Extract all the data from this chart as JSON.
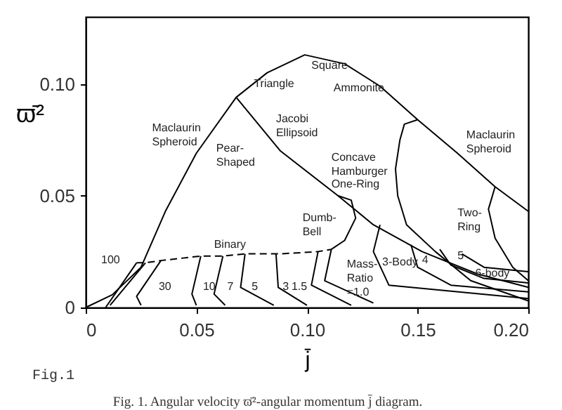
{
  "chart_data": {
    "type": "line",
    "xlabel": "j̄",
    "ylabel": "ϖ̄²",
    "xlim": [
      0,
      0.2
    ],
    "ylim": [
      0,
      0.13
    ],
    "xticks": [
      {
        "value": 0,
        "label": "0"
      },
      0.05,
      {
        "value": 0.1,
        "label": "0.10"
      },
      0.15,
      {
        "value": 0.2,
        "label": "0.20"
      }
    ],
    "yticks": [
      {
        "value": 0,
        "label": "0"
      },
      0.05,
      {
        "value": 0.1,
        "label": "0.10"
      }
    ],
    "grid": false,
    "marker": "none",
    "series": [
      {
        "color": "#000000",
        "line_style": "solid",
        "x": [
          0,
          0.012,
          0.025,
          0.036,
          0.05,
          0.068,
          0.082,
          0.099,
          0.117,
          0.133,
          0.15,
          0.168,
          0.185,
          0.2
        ],
        "values": [
          0,
          0.0057,
          0.018,
          0.043,
          0.069,
          0.094,
          0.105,
          0.113,
          0.109,
          0.099,
          0.084,
          0.069,
          0.054,
          0.043
        ]
      },
      {
        "color": "#000000",
        "line_style": "solid",
        "x": [
          0.068,
          0.088,
          0.114,
          0.13,
          0.152,
          0.177,
          0.2
        ],
        "values": [
          0.094,
          0.07,
          0.05,
          0.037,
          0.025,
          0.015,
          0.009
        ]
      },
      {
        "color": "#000000",
        "line_style": "dashed",
        "x": [
          0.023,
          0.027,
          0.034,
          0.052,
          0.062,
          0.072,
          0.088,
          0.105,
          0.111
        ],
        "values": [
          0.02,
          0.02,
          0.021,
          0.023,
          0.023,
          0.024,
          0.024,
          0.025,
          0.026
        ]
      },
      {
        "color": "#000000",
        "line_style": "solid",
        "x": [
          0.009,
          0.023
        ],
        "values": [
          0,
          0.02
        ]
      },
      {
        "color": "#000000",
        "line_style": "solid",
        "x": [
          0.011,
          0.027
        ],
        "values": [
          0.001,
          0.02
        ]
      },
      {
        "color": "#000000",
        "line_style": "solid",
        "x": [
          0.025,
          0.023,
          0.034
        ],
        "values": [
          0.001,
          0.005,
          0.021
        ]
      },
      {
        "color": "#000000",
        "line_style": "solid",
        "x": [
          0.052,
          0.048,
          0.05
        ],
        "values": [
          0.023,
          0.006,
          0.001
        ]
      },
      {
        "color": "#000000",
        "line_style": "solid",
        "x": [
          0.062,
          0.058,
          0.063
        ],
        "values": [
          0.023,
          0.006,
          0.001
        ]
      },
      {
        "color": "#000000",
        "line_style": "solid",
        "x": [
          0.072,
          0.07,
          0.085
        ],
        "values": [
          0.024,
          0.009,
          0.001
        ]
      },
      {
        "color": "#000000",
        "line_style": "solid",
        "x": [
          0.086,
          0.087,
          0.1
        ],
        "values": [
          0.024,
          0.009,
          0.001
        ]
      },
      {
        "color": "#000000",
        "line_style": "solid",
        "x": [
          0.105,
          0.102,
          0.12
        ],
        "values": [
          0.025,
          0.01,
          0.001
        ]
      },
      {
        "color": "#000000",
        "line_style": "solid",
        "x": [
          0.111,
          0.108,
          0.13
        ],
        "values": [
          0.026,
          0.012,
          0.002
        ]
      },
      {
        "color": "#000000",
        "line_style": "solid",
        "x": [
          0.111,
          0.117,
          0.122,
          0.12,
          0.114
        ],
        "values": [
          0.026,
          0.03,
          0.04,
          0.048,
          0.05
        ]
      },
      {
        "color": "#000000",
        "line_style": "solid",
        "x": [
          0.15,
          0.144,
          0.142,
          0.14,
          0.141,
          0.145,
          0.158,
          0.174,
          0.2
        ],
        "values": [
          0.084,
          0.082,
          0.075,
          0.062,
          0.05,
          0.037,
          0.025,
          0.012,
          0.003
        ]
      },
      {
        "color": "#000000",
        "line_style": "solid",
        "x": [
          0.185,
          0.182,
          0.185,
          0.193,
          0.2
        ],
        "values": [
          0.054,
          0.044,
          0.031,
          0.018,
          0.012
        ]
      },
      {
        "color": "#000000",
        "line_style": "solid",
        "x": [
          0.133,
          0.13,
          0.137,
          0.2
        ],
        "values": [
          0.037,
          0.025,
          0.01,
          0.004
        ]
      },
      {
        "color": "#000000",
        "line_style": "solid",
        "x": [
          0.147,
          0.15,
          0.165,
          0.2
        ],
        "values": [
          0.028,
          0.018,
          0.01,
          0.007
        ]
      },
      {
        "color": "#000000",
        "line_style": "solid",
        "x": [
          0.16,
          0.165,
          0.18,
          0.2
        ],
        "values": [
          0.026,
          0.019,
          0.013,
          0.011
        ]
      },
      {
        "color": "#000000",
        "line_style": "solid",
        "x": [
          0.17,
          0.18,
          0.2
        ],
        "values": [
          0.024,
          0.018,
          0.016
        ]
      }
    ],
    "annotations": [
      "Maclaurin\nSpheroid",
      "Jacobi\nEllipsoid",
      "Pear-\nShaped",
      "Triangle",
      "Square",
      "Ammonite",
      "Concave\nHamburger",
      "One-Ring",
      "Maclaurin\nSpheroid",
      "Two-\nRing",
      "Dumb-\nBell",
      "Binary",
      "Mass-\nRatio\n=1.0",
      "3-Body",
      "4",
      "5",
      "6-body",
      "100",
      "30",
      "10",
      "7",
      "5",
      "3",
      "1.5",
      "Fig.1",
      "Fig. 1.  Angular velocity ϖ̄²-angular momentum j̄ diagram."
    ]
  }
}
